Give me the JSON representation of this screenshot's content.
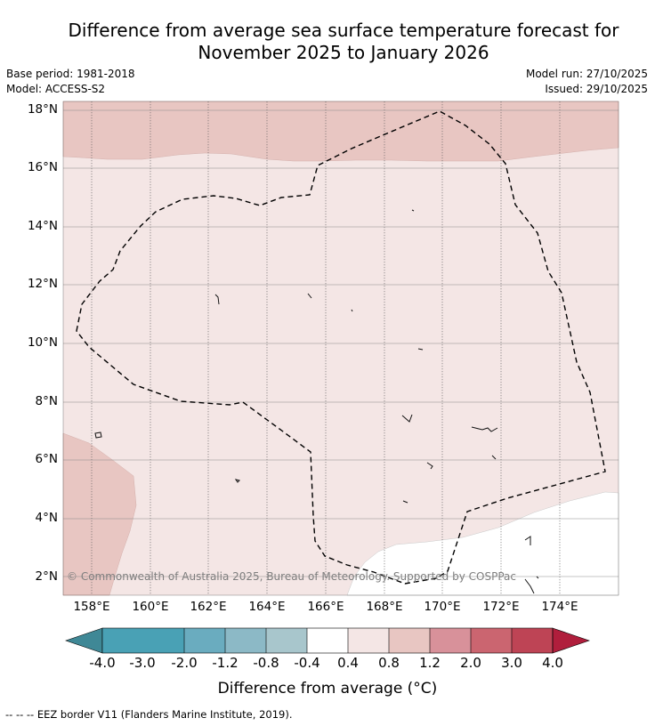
{
  "title_line1": "Difference from average sea surface temperature forecast for",
  "title_line2": "November 2025 to January 2026",
  "base_period": "Base period: 1981-2018",
  "model": "Model: ACCESS-S2",
  "model_run": "Model run: 27/10/2025",
  "issued": "Issued: 29/10/2025",
  "y_ticks": [
    "18°N",
    "16°N",
    "14°N",
    "12°N",
    "10°N",
    "8°N",
    "6°N",
    "4°N",
    "2°N"
  ],
  "x_ticks": [
    "158°E",
    "160°E",
    "162°E",
    "164°E",
    "166°E",
    "168°E",
    "170°E",
    "172°E",
    "174°E"
  ],
  "colorbar_ticks": [
    "-4.0",
    "-3.0",
    "-2.0",
    "-1.2",
    "-0.8",
    "-0.4",
    "0.4",
    "0.8",
    "1.2",
    "2.0",
    "3.0",
    "4.0"
  ],
  "colorbar_label": "Difference from average (°C)",
  "copyright": "© Commonwealth of Australia 2025, Bureau of Meteorology. Supported by COSPPac",
  "footnote": "-- -- -- EEZ border V11 (Flanders Marine Institute, 2019).",
  "colors": {
    "bin_0.4_0.8": "#f4e6e5",
    "bin_0.8_1.2": "#e8c6c2",
    "neutral": "#ffffff",
    "colorbar": [
      "#3f8896",
      "#49a1b5",
      "#6aacbf",
      "#8cb9c6",
      "#a8c6cc",
      "#d1d8db",
      "#ffffff",
      "#f4e6e5",
      "#e8c6c2",
      "#d8919a",
      "#cb6570",
      "#be4455",
      "#b01e3c"
    ]
  }
}
